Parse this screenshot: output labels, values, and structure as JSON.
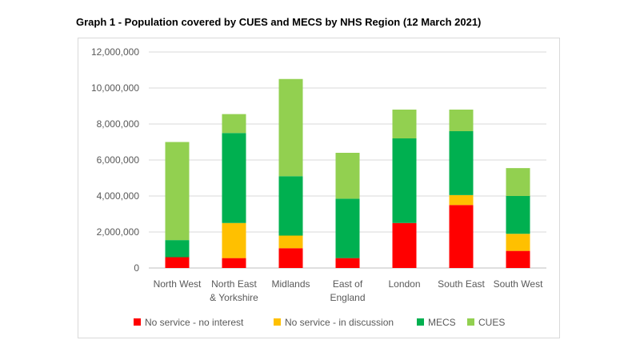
{
  "chart_data": {
    "type": "bar",
    "stacked": true,
    "title": "Graph 1 - Population covered by CUES and MECS by NHS Region (12 March 2021)",
    "categories": [
      [
        "North West"
      ],
      [
        "North East",
        "& Yorkshire"
      ],
      [
        "Midlands"
      ],
      [
        "East of",
        "England"
      ],
      [
        "London"
      ],
      [
        "South East"
      ],
      [
        "South West"
      ]
    ],
    "ylim": [
      0,
      12000000
    ],
    "yticks": [
      0,
      2000000,
      4000000,
      6000000,
      8000000,
      10000000,
      12000000
    ],
    "ytick_labels": [
      "0",
      "2,000,000",
      "4,000,000",
      "6,000,000",
      "8,000,000",
      "10,000,000",
      "12,000,000"
    ],
    "grid": true,
    "legend_position": "bottom",
    "series": [
      {
        "name": "No service - no interest",
        "color": "#ff0000",
        "values": [
          600000,
          550000,
          1100000,
          550000,
          2500000,
          3500000,
          950000
        ]
      },
      {
        "name": "No service - in discussion",
        "color": "#ffc000",
        "values": [
          0,
          1950000,
          700000,
          0,
          0,
          550000,
          950000
        ]
      },
      {
        "name": "MECS",
        "color": "#00b050",
        "values": [
          950000,
          5000000,
          3300000,
          3300000,
          4700000,
          3550000,
          2100000
        ]
      },
      {
        "name": "CUES",
        "color": "#92d050",
        "values": [
          5450000,
          1050000,
          5400000,
          2550000,
          1600000,
          1200000,
          1550000
        ]
      }
    ]
  }
}
